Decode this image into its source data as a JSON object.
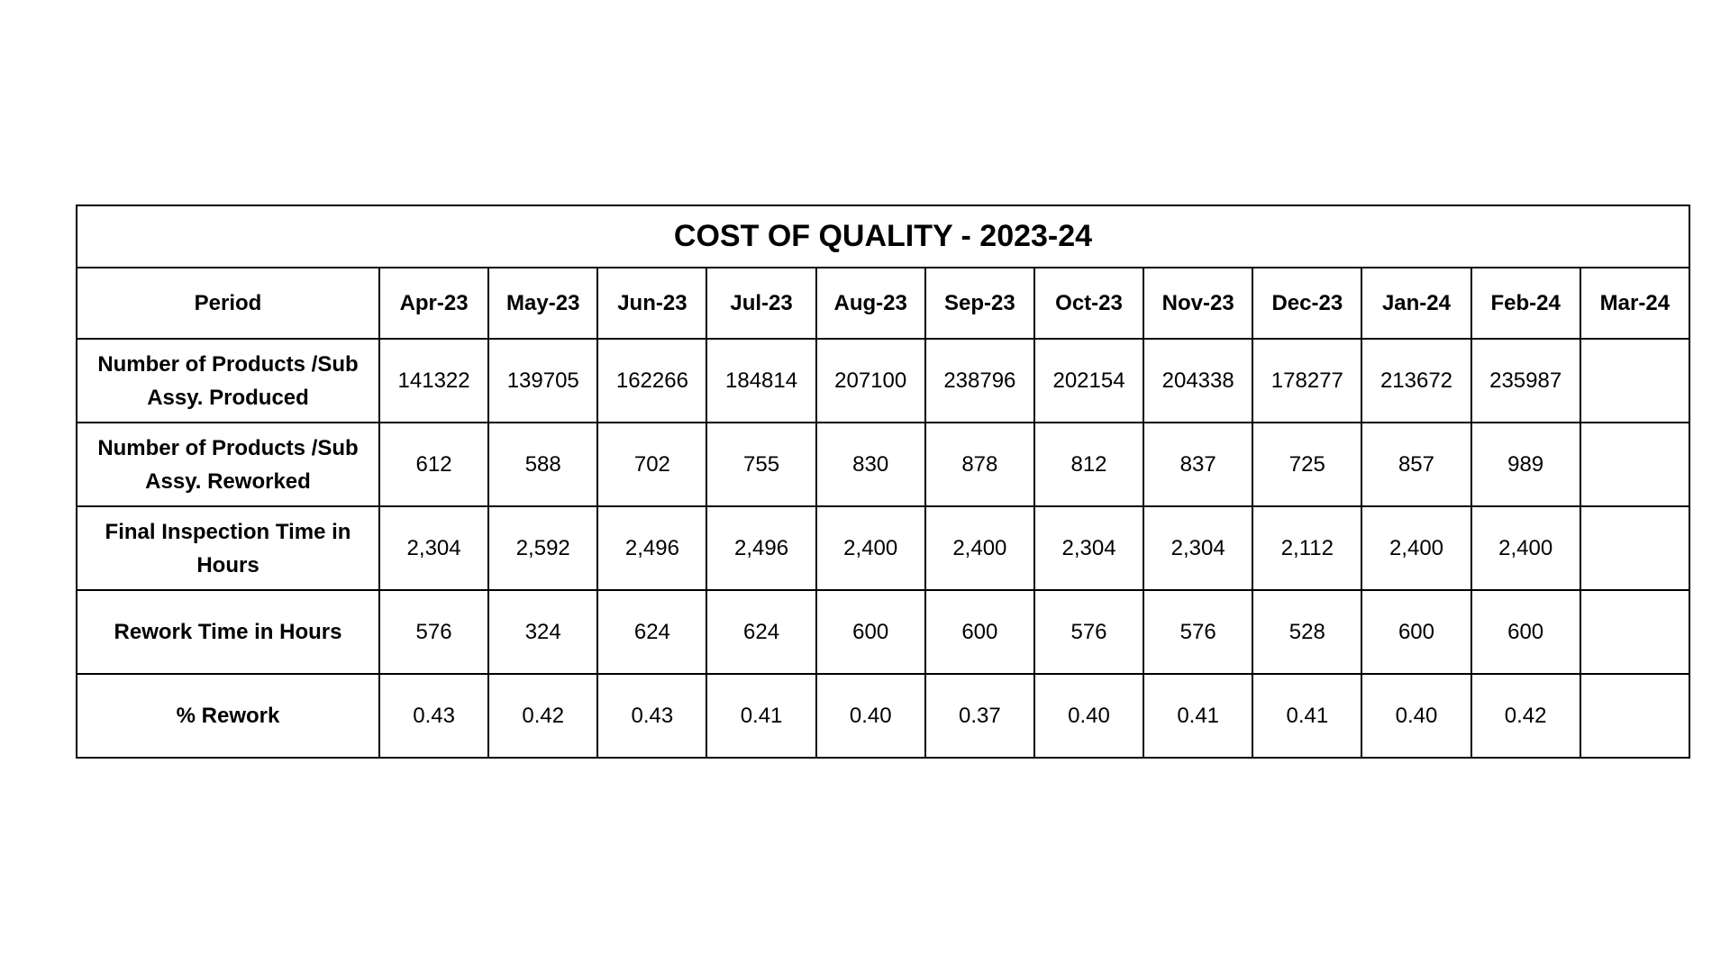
{
  "table": {
    "title": "COST OF QUALITY - 2023-24",
    "period_label": "Period",
    "months": [
      "Apr-23",
      "May-23",
      "Jun-23",
      "Jul-23",
      "Aug-23",
      "Sep-23",
      "Oct-23",
      "Nov-23",
      "Dec-23",
      "Jan-24",
      "Feb-24",
      "Mar-24"
    ],
    "rows": [
      {
        "label": "Number of Products /Sub Assy. Produced",
        "values": [
          "141322",
          "139705",
          "162266",
          "184814",
          "207100",
          "238796",
          "202154",
          "204338",
          "178277",
          "213672",
          "235987",
          ""
        ]
      },
      {
        "label": "Number of Products /Sub Assy. Reworked",
        "values": [
          "612",
          "588",
          "702",
          "755",
          "830",
          "878",
          "812",
          "837",
          "725",
          "857",
          "989",
          ""
        ]
      },
      {
        "label": "Final Inspection Time in Hours",
        "values": [
          "2,304",
          "2,592",
          "2,496",
          "2,496",
          "2,400",
          "2,400",
          "2,304",
          "2,304",
          "2,112",
          "2,400",
          "2,400",
          ""
        ]
      },
      {
        "label": "Rework Time in Hours",
        "values": [
          "576",
          "324",
          "624",
          "624",
          "600",
          "600",
          "576",
          "576",
          "528",
          "600",
          "600",
          ""
        ]
      },
      {
        "label": "% Rework",
        "values": [
          "0.43",
          "0.42",
          "0.43",
          "0.41",
          "0.40",
          "0.37",
          "0.40",
          "0.41",
          "0.41",
          "0.40",
          "0.42",
          ""
        ]
      }
    ]
  }
}
